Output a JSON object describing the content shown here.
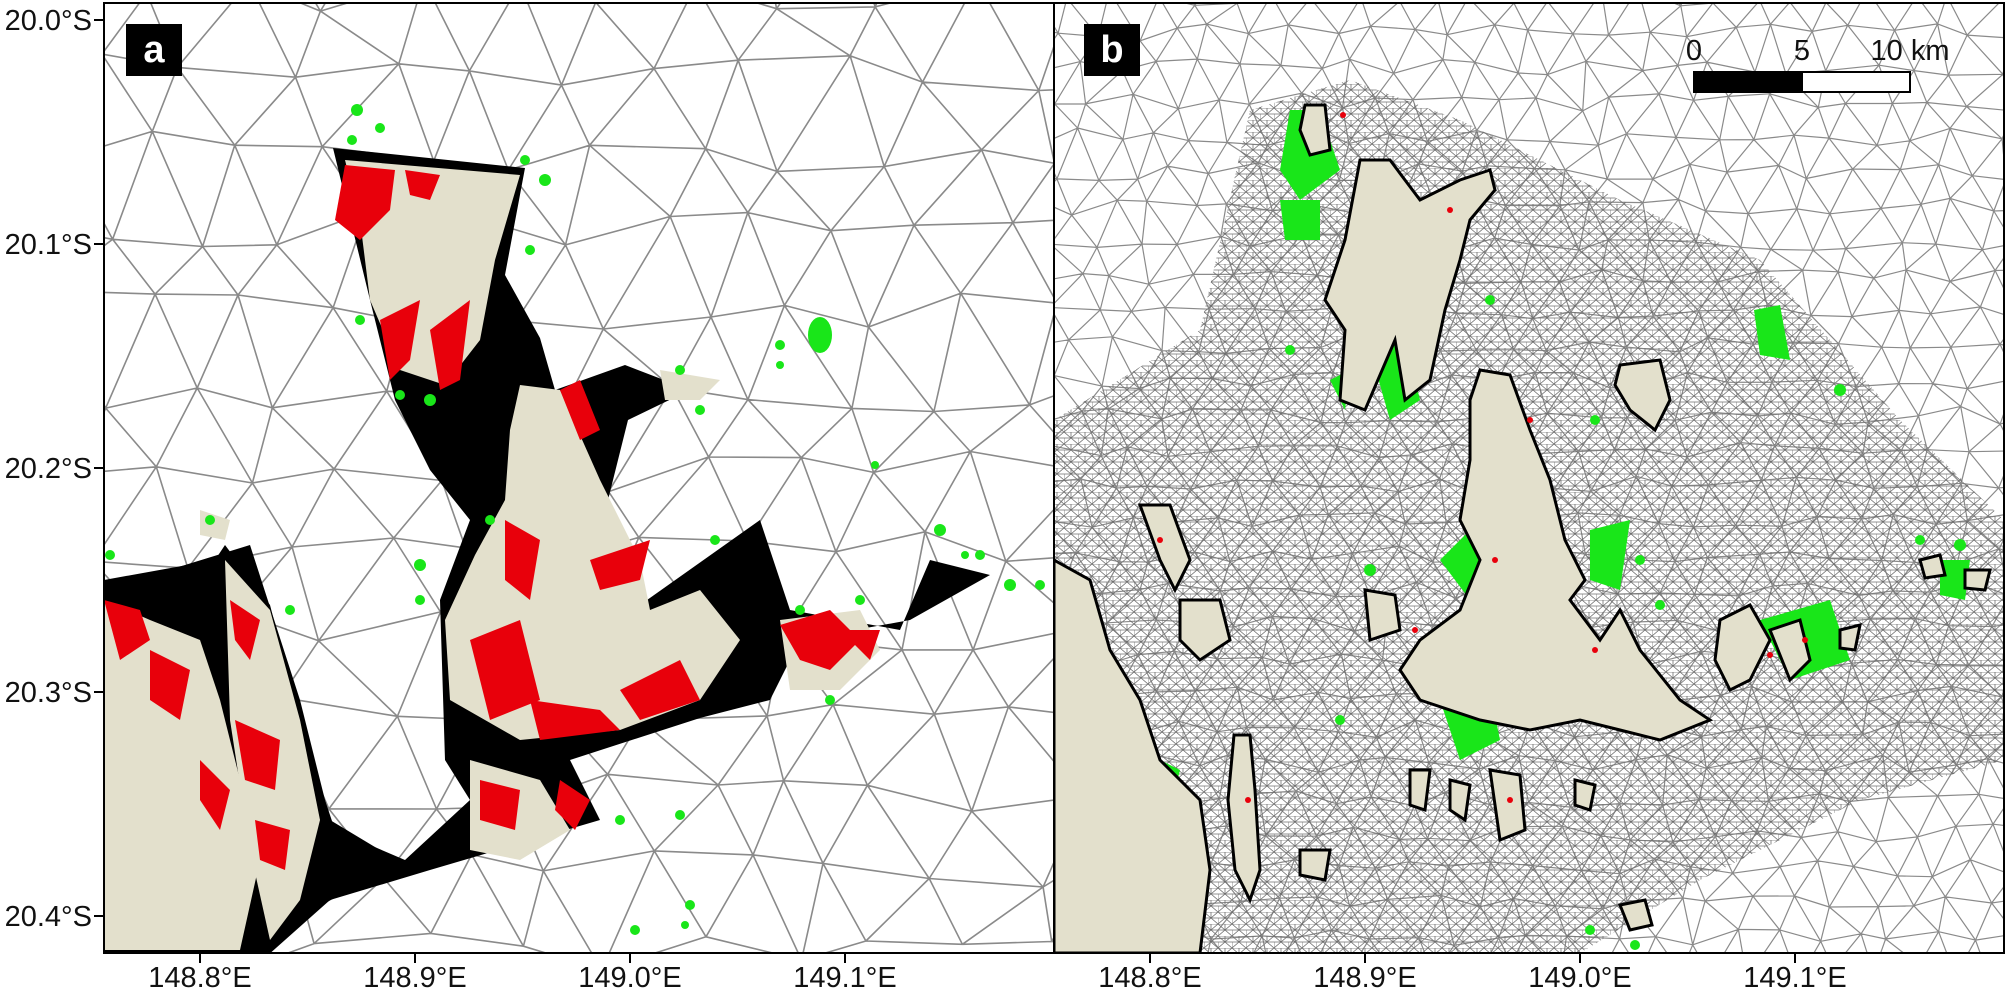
{
  "figure": {
    "colors": {
      "land": "#e3e0cc",
      "mesh_line": "#8a8a8a",
      "fine_mesh_line": "#6f6f6f",
      "red_region": "#e8000b",
      "green_region": "#19e619",
      "black_region": "#000000",
      "coast_outline": "#000000"
    },
    "y_axis": {
      "ticks": [
        "20.0°S",
        "20.1°S",
        "20.2°S",
        "20.3°S",
        "20.4°S"
      ]
    },
    "panels": [
      {
        "letter": "a",
        "x_ticks": [
          "148.8°E",
          "148.9°E",
          "149.0°E",
          "149.1°E"
        ]
      },
      {
        "letter": "b",
        "x_ticks": [
          "148.8°E",
          "148.9°E",
          "149.0°E",
          "149.1°E"
        ],
        "scale_bar": {
          "labels": [
            "0",
            "5",
            "10 km"
          ]
        }
      }
    ]
  }
}
